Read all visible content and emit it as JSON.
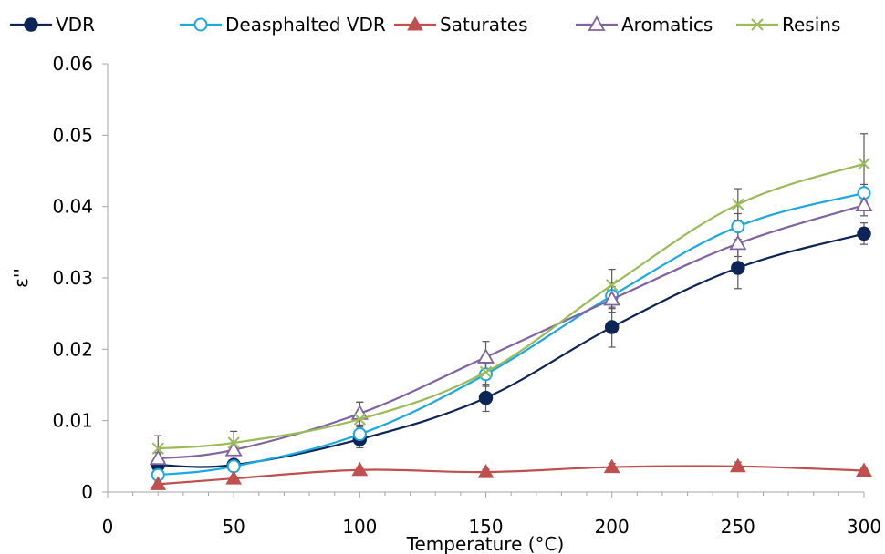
{
  "chart_data": {
    "type": "line",
    "title": "",
    "xlabel": "Temperature (°C)",
    "ylabel": "ε''",
    "xlim": [
      0,
      300
    ],
    "ylim": [
      0,
      0.06
    ],
    "x_ticks": [
      0,
      50,
      100,
      150,
      200,
      250,
      300
    ],
    "x_tick_labels": [
      "0",
      "50",
      "100",
      "150",
      "200",
      "250",
      "300"
    ],
    "y_ticks": [
      0,
      0.01,
      0.02,
      0.03,
      0.04,
      0.05,
      0.06
    ],
    "y_tick_labels": [
      "0",
      "0.01",
      "0.02",
      "0.03",
      "0.04",
      "0.05",
      "0.06"
    ],
    "grid": false,
    "legend_position": "top",
    "x": [
      20,
      50,
      100,
      150,
      200,
      250,
      300
    ],
    "series": [
      {
        "name": "VDR",
        "color": "#0d2457",
        "marker": "filled-circle",
        "values": [
          0.0038,
          0.0038,
          0.0074,
          0.0132,
          0.0231,
          0.0314,
          0.0362
        ],
        "errors": [
          0.0004,
          0.0005,
          0.0012,
          0.0019,
          0.0028,
          0.0029,
          0.0015
        ]
      },
      {
        "name": "Deasphalted VDR",
        "color": "#1ba8e0",
        "marker": "open-circle",
        "values": [
          0.0024,
          0.0036,
          0.0081,
          0.0165,
          0.0275,
          0.0372,
          0.0419
        ],
        "errors": [
          0.0003,
          0.0004,
          0.001,
          0.0015,
          0.0018,
          0.0018,
          0.0012
        ]
      },
      {
        "name": "Saturates",
        "color": "#c0504d",
        "marker": "filled-triangle",
        "values": [
          0.0011,
          0.0019,
          0.0031,
          0.0028,
          0.0035,
          0.0036,
          0.003
        ],
        "errors": [
          0.0003,
          0.0003,
          0.0004,
          0.0004,
          0.0005,
          0.0006,
          0.0003
        ]
      },
      {
        "name": "Aromatics",
        "color": "#8064a2",
        "marker": "open-triangle",
        "values": [
          0.0047,
          0.0059,
          0.011,
          0.0189,
          0.027,
          0.0348,
          0.0402
        ],
        "errors": [
          0.0008,
          0.001,
          0.0016,
          0.0022,
          0.0018,
          0.0018,
          0.0015
        ]
      },
      {
        "name": "Resins",
        "color": "#9bbb59",
        "marker": "cross",
        "values": [
          0.0061,
          0.0069,
          0.0102,
          0.0168,
          0.029,
          0.0403,
          0.046
        ],
        "errors": [
          0.0018,
          0.0016,
          0.0024,
          0.002,
          0.0022,
          0.0022,
          0.0042
        ]
      }
    ]
  }
}
